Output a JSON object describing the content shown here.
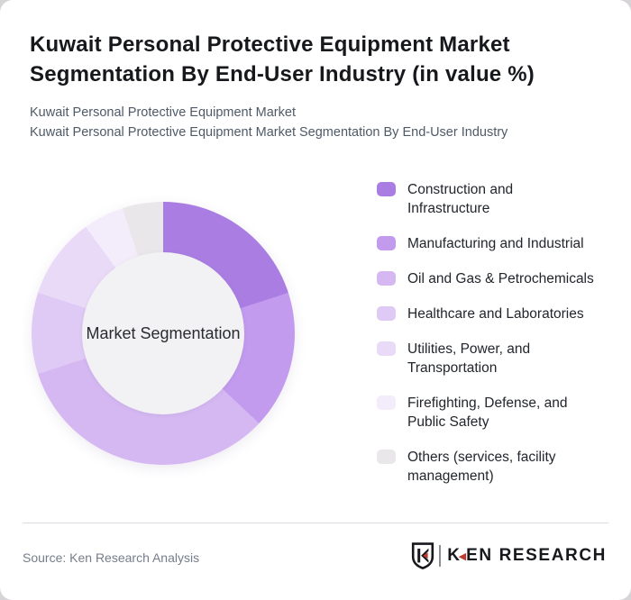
{
  "page": {
    "background_color": "#d6d4d6",
    "card_color": "#ffffff"
  },
  "header": {
    "title": "Kuwait Personal Protective Equipment Market\nSegmentation By End-User Industry (in value %)",
    "subtitle_line1": "Kuwait Personal Protective Equipment Market",
    "subtitle_line2": "Kuwait Personal Protective Equipment Market Segmentation By End-User Industry"
  },
  "chart_data": {
    "type": "pie",
    "variant": "donut",
    "title": "Kuwait Personal Protective Equipment Market Segmentation By End-User Industry (in value %)",
    "center_label": "Market Segmentation",
    "unit": "value %",
    "start_angle_deg": 0,
    "direction": "clockwise",
    "legend_position": "right",
    "data_labels_shown": false,
    "hole_color": "#f2f1f3",
    "labels": [
      "Construction and Infrastructure",
      "Manufacturing and Industrial",
      "Oil and Gas & Petrochemicals",
      "Healthcare and Laboratories",
      "Utilities, Power, and Transportation",
      "Firefighting, Defense, and Public Safety",
      "Others (services, facility management)"
    ],
    "values": [
      20,
      17,
      33,
      10,
      10,
      5,
      5
    ],
    "values_note": "estimated from slice angles; no numeric labels are rendered on the chart",
    "colors": [
      "#aa7de3",
      "#c29bef",
      "#d5b8f2",
      "#dfc9f5",
      "#e9daf8",
      "#f3ecfb",
      "#e9e7ea"
    ]
  },
  "legend": {
    "items": [
      {
        "label": "Construction and\nInfrastructure",
        "color": "#aa7de3"
      },
      {
        "label": "Manufacturing and Industrial",
        "color": "#c29bef"
      },
      {
        "label": "Oil and Gas & Petrochemicals",
        "color": "#d5b8f2"
      },
      {
        "label": "Healthcare and Laboratories",
        "color": "#dfc9f5"
      },
      {
        "label": "Utilities, Power, and\nTransportation",
        "color": "#e9daf8"
      },
      {
        "label": "Firefighting, Defense, and\nPublic Safety",
        "color": "#f3ecfb"
      },
      {
        "label": "Others (services, facility\nmanagement)",
        "color": "#e9e7ea"
      }
    ]
  },
  "footer": {
    "source": "Source: Ken Research Analysis",
    "logo": {
      "brand_k": "K",
      "brand_rest": "EN RESEARCH",
      "accent_color": "#c0392b",
      "triangle_glyph": "◀"
    }
  }
}
